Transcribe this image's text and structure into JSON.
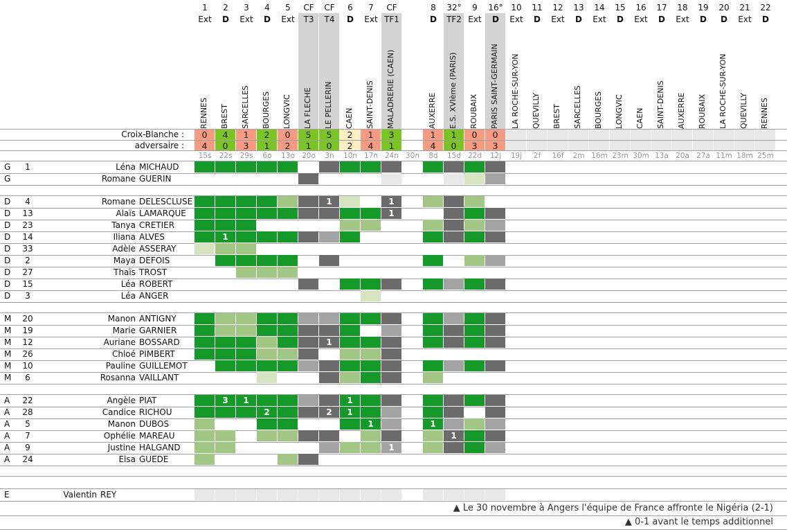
{
  "colors": {
    "win": "#7ac524",
    "loss": "#f79a82",
    "draw": "#fcefc4",
    "future": "#e8e8e8",
    "played_full": "#159a2a",
    "played_part": "#a2c785",
    "played_short": "#d6e4c0",
    "bench_dark": "#6b6b6b",
    "bench_mid": "#a3a3a3",
    "cup_header": "#d4d4d4"
  },
  "matches": [
    {
      "num": "1",
      "type": "Ext",
      "team": "RENNES",
      "cf": false,
      "us": "0",
      "them": "4",
      "result": "loss",
      "date": "15s"
    },
    {
      "num": "2",
      "type": "D",
      "team": "BREST",
      "cf": false,
      "us": "4",
      "them": "0",
      "result": "win",
      "date": "22s"
    },
    {
      "num": "3",
      "type": "Ext",
      "team": "SARCELLES",
      "cf": false,
      "us": "1",
      "them": "3",
      "result": "loss",
      "date": "29s"
    },
    {
      "num": "4",
      "type": "D",
      "team": "BOURGES",
      "cf": false,
      "us": "2",
      "them": "1",
      "result": "win",
      "date": "6o"
    },
    {
      "num": "5",
      "type": "Ext",
      "team": "LONGVIC",
      "cf": false,
      "us": "0",
      "them": "2",
      "result": "loss",
      "date": "13o"
    },
    {
      "num": "CF",
      "type": "T3",
      "team": "LA FLECHE",
      "cf": true,
      "us": "5",
      "them": "1",
      "result": "win",
      "date": "20o"
    },
    {
      "num": "CF",
      "type": "T4",
      "team": "LE PELLERIN",
      "cf": true,
      "us": "5",
      "them": "0",
      "result": "win",
      "date": "3n"
    },
    {
      "num": "6",
      "type": "D",
      "team": "CAEN",
      "cf": false,
      "us": "2",
      "them": "2",
      "result": "draw",
      "date": "10n"
    },
    {
      "num": "7",
      "type": "Ext",
      "team": "SAINT-DENIS",
      "cf": false,
      "us": "1",
      "them": "4",
      "result": "loss",
      "date": "17n"
    },
    {
      "num": "CF",
      "type": "TF1",
      "team": "MALADRERIE (CAEN)",
      "cf": true,
      "us": "3",
      "them": "1",
      "result": "win",
      "date": "24n"
    },
    {
      "num": "",
      "type": "",
      "team": "",
      "cf": false,
      "us": "",
      "them": "",
      "result": "none",
      "date": "30n"
    },
    {
      "num": "8",
      "type": "D",
      "team": "AUXERRE",
      "cf": false,
      "us": "1",
      "them": "4",
      "result": "loss",
      "date": "8d"
    },
    {
      "num": "32°",
      "type": "TF2",
      "team": "E.S. XVIème (PARIS)",
      "cf": true,
      "us": "1",
      "them": "0",
      "result": "win",
      "date": "15d"
    },
    {
      "num": "9",
      "type": "Ext",
      "team": "ROUBAIX",
      "cf": false,
      "us": "0",
      "them": "3",
      "result": "loss",
      "date": "22d"
    },
    {
      "num": "16°",
      "type": "D",
      "team": "PARIS SAINT-GERMAIN",
      "cf": true,
      "us": "0",
      "them": "3",
      "result": "loss",
      "date": "12j"
    },
    {
      "num": "10",
      "type": "Ext",
      "team": "LA ROCHE-SUR-YON",
      "cf": false,
      "us": "",
      "them": "",
      "result": "future",
      "date": "19j"
    },
    {
      "num": "11",
      "type": "D",
      "team": "QUEVILLY",
      "cf": false,
      "us": "",
      "them": "",
      "result": "future",
      "date": "2f"
    },
    {
      "num": "12",
      "type": "Ext",
      "team": "BREST",
      "cf": false,
      "us": "",
      "them": "",
      "result": "future",
      "date": "16f"
    },
    {
      "num": "13",
      "type": "D",
      "team": "SARCELLES",
      "cf": false,
      "us": "",
      "them": "",
      "result": "future",
      "date": "2m"
    },
    {
      "num": "14",
      "type": "Ext",
      "team": "BOURGES",
      "cf": false,
      "us": "",
      "them": "",
      "result": "future",
      "date": "16m"
    },
    {
      "num": "15",
      "type": "D",
      "team": "LONGVIC",
      "cf": false,
      "us": "",
      "them": "",
      "result": "future",
      "date": "23m"
    },
    {
      "num": "16",
      "type": "Ext",
      "team": "CAEN",
      "cf": false,
      "us": "",
      "them": "",
      "result": "future",
      "date": "30m"
    },
    {
      "num": "17",
      "type": "D",
      "team": "SAINT-DENIS",
      "cf": false,
      "us": "",
      "them": "",
      "result": "future",
      "date": "13a"
    },
    {
      "num": "18",
      "type": "Ext",
      "team": "AUXERRE",
      "cf": false,
      "us": "",
      "them": "",
      "result": "future",
      "date": "20a"
    },
    {
      "num": "19",
      "type": "D",
      "team": "ROUBAIX",
      "cf": false,
      "us": "",
      "them": "",
      "result": "future",
      "date": "27a"
    },
    {
      "num": "20",
      "type": "D",
      "team": "LA ROCHE-SUR-YON",
      "cf": false,
      "us": "",
      "them": "",
      "result": "future",
      "date": "11m"
    },
    {
      "num": "21",
      "type": "Ext",
      "team": "QUEVILLY",
      "cf": false,
      "us": "",
      "them": "",
      "result": "future",
      "date": "18m"
    },
    {
      "num": "22",
      "type": "D",
      "team": "RENNES",
      "cf": false,
      "us": "",
      "them": "",
      "result": "future",
      "date": "25m"
    }
  ],
  "score_labels": {
    "us": "Croix-Blanche :",
    "them": "adversaire :"
  },
  "legend_codes": {
    "G": "played full match",
    "L": "played partial",
    "P": "short appearance",
    "D": "not selected / bench (dark)",
    "M": "bench (mid)",
    "E": "coach / empty"
  },
  "groups": [
    {
      "players": [
        {
          "pos": "G",
          "num": "1",
          "first": "Léna",
          "last": "MICHAUD",
          "cells": "GGGGG_DGGD_GDGD",
          "goals": {}
        },
        {
          "pos": "G",
          "num": "",
          "first": "Romane",
          "last": "GUERIN",
          "cells": "_____D___E__EPM",
          "goals": {}
        }
      ]
    },
    {
      "players": [
        {
          "pos": "D",
          "num": "4",
          "first": "Romane",
          "last": "DELESCLUSE",
          "cells": "GGGGLDDP_D_LDL_",
          "goals": {
            "6": "1",
            "9": "1"
          }
        },
        {
          "pos": "D",
          "num": "13",
          "first": "Alaïs",
          "last": "LAMARQUE",
          "cells": "GGGGGDDGGD__DGD",
          "goals": {
            "9": "1"
          }
        },
        {
          "pos": "D",
          "num": "23",
          "first": "Tanya",
          "last": "CRETIER",
          "cells": "GGG____LL__LDLM",
          "goals": {}
        },
        {
          "pos": "D",
          "num": "14",
          "first": "Iliana",
          "last": "ALVES",
          "cells": "GGGGGDMG___GDGD",
          "goals": {
            "1": "1"
          }
        },
        {
          "pos": "D",
          "num": "33",
          "first": "Adèle",
          "last": "ASSERAY",
          "cells": "PLL____________",
          "goals": {}
        },
        {
          "pos": "D",
          "num": "2",
          "first": "Maya",
          "last": "DEFOIS",
          "cells": "_GGGG_D____G_LM",
          "goals": {}
        },
        {
          "pos": "D",
          "num": "27",
          "first": "Thaïs",
          "last": "TROST",
          "cells": "__LLL__________",
          "goals": {}
        },
        {
          "pos": "D",
          "num": "15",
          "first": "Léa",
          "last": "ROBERT",
          "cells": "_____D_GGD_GMGD",
          "goals": {}
        },
        {
          "pos": "D",
          "num": "3",
          "first": "Léa",
          "last": "ANGER",
          "cells": "________P______",
          "goals": {}
        }
      ]
    },
    {
      "players": [
        {
          "pos": "M",
          "num": "20",
          "first": "Manon",
          "last": "ANTIGNY",
          "cells": "GLLGGMMGGD_GMGD",
          "goals": {}
        },
        {
          "pos": "M",
          "num": "19",
          "first": "Marie",
          "last": "GARNIER",
          "cells": "GLLGGDDG_M_GDGD",
          "goals": {}
        },
        {
          "pos": "M",
          "num": "12",
          "first": "Auriane",
          "last": "BOSSARD",
          "cells": "GGGLGDDGGD_GDGD",
          "goals": {
            "6": "1"
          }
        },
        {
          "pos": "M",
          "num": "26",
          "first": "Chloé",
          "last": "PIMBERT",
          "cells": "GGGLLD_LLD_____",
          "goals": {}
        },
        {
          "pos": "M",
          "num": "10",
          "first": "Pauline",
          "last": "GUILLEMOT",
          "cells": "_GGGGMDGGD_GMGD",
          "goals": {}
        },
        {
          "pos": "M",
          "num": "6",
          "first": "Rosanna",
          "last": "VAILLANT",
          "cells": "___P__DLGD_L___",
          "goals": {}
        }
      ]
    },
    {
      "players": [
        {
          "pos": "A",
          "num": "22",
          "first": "Angèle",
          "last": "PIAT",
          "cells": "GGGGGMDGGD_GDGD",
          "goals": {
            "1": "3",
            "2": "1",
            "7": "1"
          }
        },
        {
          "pos": "A",
          "num": "28",
          "first": "Candice",
          "last": "RICHOU",
          "cells": "GGGGGDDGGM_GD_D",
          "goals": {
            "3": "2",
            "6": "2",
            "7": "1"
          }
        },
        {
          "pos": "A",
          "num": "5",
          "first": "Manon",
          "last": "DUBOS",
          "cells": "L__GG__GGM_GMLM",
          "goals": {
            "8": "1",
            "11": "1"
          }
        },
        {
          "pos": "A",
          "num": "7",
          "first": "Ophélie",
          "last": "MAREAU",
          "cells": "LL_LLDD_LD_LDGD",
          "goals": {
            "12": "1"
          }
        },
        {
          "pos": "A",
          "num": "9",
          "first": "Justine",
          "last": "HALGAND",
          "cells": "LL____MLLM_LDGM",
          "goals": {
            "9": "1"
          }
        },
        {
          "pos": "A",
          "num": "24",
          "first": "Elsa",
          "last": "GUEDE",
          "cells": "L___LD_________",
          "goals": {}
        }
      ]
    }
  ],
  "staff": {
    "pos": "E",
    "first": "Valentin",
    "last": "REY",
    "cells": "EEEEEEEEEE_EEEE"
  },
  "notes": [
    "▲ Le 30 novembre à Angers l'équipe de France affronte le Nigéria (2-1)",
    "▲ 0-1 avant le temps additionnel"
  ]
}
